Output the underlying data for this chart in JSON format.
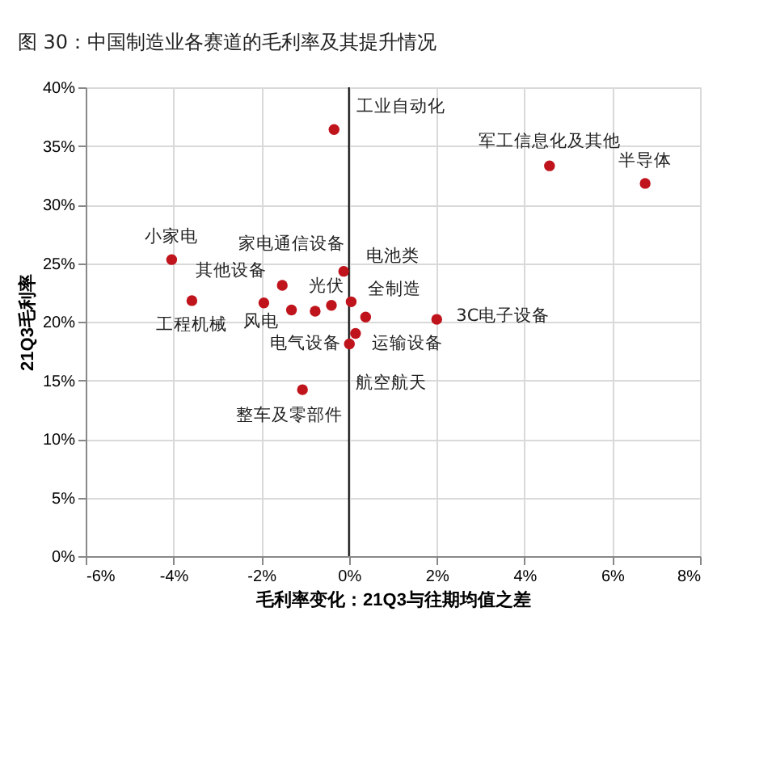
{
  "chart_data": {
    "type": "scatter",
    "title": "图 30：中国制造业各赛道的毛利率及其提升情况",
    "xlabel": "毛利率变化：21Q3与往期均值之差",
    "ylabel": "21Q3毛利率",
    "x": [
      -0.34,
      4.57,
      6.75,
      -4.04,
      -3.58,
      -1.94,
      -0.12,
      -1.31,
      -0.4,
      0.05,
      0.38,
      -0.77,
      0.15,
      0.01,
      -1.06,
      2.0,
      -1.52
    ],
    "series": [
      {
        "color": "#c0141c",
        "values": [
          36.4,
          33.3,
          31.8,
          25.3,
          21.8,
          21.6,
          24.3,
          21.0,
          21.4,
          21.7,
          20.4,
          20.9,
          19.0,
          18.1,
          14.2,
          20.2,
          23.1
        ]
      }
    ],
    "xlim": [
      -6,
      8
    ],
    "ylim": [
      0,
      40
    ],
    "xticks": [
      {
        "value": -6,
        "label": "-6%"
      },
      {
        "value": -4,
        "label": "-4%"
      },
      {
        "value": -2,
        "label": "-2%"
      },
      {
        "value": 0,
        "label": "0%"
      },
      {
        "value": 2,
        "label": "2%"
      },
      {
        "value": 4,
        "label": "4%"
      },
      {
        "value": 6,
        "label": "6%"
      },
      {
        "value": 8,
        "label": "8%"
      }
    ],
    "yticks": [
      {
        "value": 0,
        "label": "0%"
      },
      {
        "value": 5,
        "label": "5%"
      },
      {
        "value": 10,
        "label": "10%"
      },
      {
        "value": 15,
        "label": "15%"
      },
      {
        "value": 20,
        "label": "20%"
      },
      {
        "value": 25,
        "label": "25%"
      },
      {
        "value": 30,
        "label": "30%"
      },
      {
        "value": 35,
        "label": "35%"
      },
      {
        "value": 40,
        "label": "40%"
      }
    ],
    "grid": true,
    "marker": "circle",
    "legend": false,
    "ref_lines": [
      {
        "axis": "x",
        "value": 0,
        "color": "#000000"
      }
    ],
    "annotations": [
      {
        "text": "工业自动化",
        "x": -0.34,
        "y": 36.4
      },
      {
        "text": "军工信息化及其他",
        "x": 4.57,
        "y": 33.3
      },
      {
        "text": "半导体",
        "x": 6.75,
        "y": 31.8
      },
      {
        "text": "小家电",
        "x": -4.04,
        "y": 25.3
      },
      {
        "text": "工程机械",
        "x": -3.58,
        "y": 21.8
      },
      {
        "text": "其他设备",
        "x": -1.94,
        "y": 21.6
      },
      {
        "text": "家电通信设备",
        "x": -0.12,
        "y": 24.3
      },
      {
        "text": "风电",
        "x": -1.31,
        "y": 21.0
      },
      {
        "text": "光伏",
        "x": -0.4,
        "y": 21.4
      },
      {
        "text": "电池类",
        "x": 0.05,
        "y": 21.7
      },
      {
        "text": "全制造",
        "x": 0.38,
        "y": 20.4
      },
      {
        "text": "电气设备",
        "x": -0.77,
        "y": 20.9
      },
      {
        "text": "运输设备",
        "x": 0.15,
        "y": 19.0
      },
      {
        "text": "航空航天",
        "x": 0.01,
        "y": 18.1
      },
      {
        "text": "整车及零部件",
        "x": -1.06,
        "y": 14.2
      },
      {
        "text": "3C电子设备",
        "x": 2.0,
        "y": 20.2
      }
    ]
  }
}
